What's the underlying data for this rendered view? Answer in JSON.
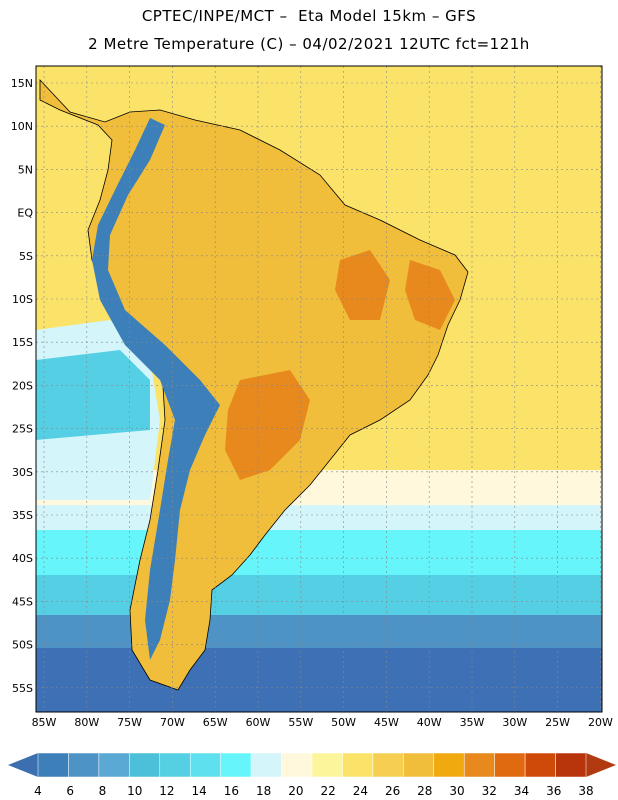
{
  "title_line1": "CPTEC/INPE/MCT –  Eta Model 15km – GFS",
  "title_line2": "2 Metre Temperature (C) – 04/02/2021 12UTC fct=121h",
  "lat_labels": [
    "15N",
    "10N",
    "5N",
    "EQ",
    "5S",
    "10S",
    "15S",
    "20S",
    "25S",
    "30S",
    "35S",
    "40S",
    "45S",
    "50S",
    "55S"
  ],
  "lon_labels": [
    "85W",
    "80W",
    "75W",
    "70W",
    "65W",
    "60W",
    "55W",
    "50W",
    "45W",
    "40W",
    "35W",
    "30W",
    "25W",
    "20W"
  ],
  "colorbar": {
    "labels": [
      "4",
      "6",
      "8",
      "10",
      "12",
      "14",
      "16",
      "18",
      "20",
      "22",
      "24",
      "26",
      "28",
      "30",
      "32",
      "34",
      "36",
      "38"
    ],
    "colors": [
      "#3d7fb8",
      "#4e93c6",
      "#5aa8d4",
      "#4cbfd9",
      "#55cfe3",
      "#5fe0ee",
      "#66f5fb",
      "#d4f6fb",
      "#fff8dc",
      "#fdf59c",
      "#fbe36a",
      "#f6cf52",
      "#f0be3a",
      "#f0aa10",
      "#e8891e",
      "#e06a10",
      "#cf4a08",
      "#b8340a"
    ],
    "low_color": "#3c6fb0",
    "high_color": "#b23a10"
  },
  "map_colors": {
    "ocean_tropical": "#fbe36a",
    "ocean_subtropical": "#fff8dc",
    "ocean_temperate_warm": "#d4f6fb",
    "ocean_temperate": "#66f5fb",
    "ocean_cool": "#55cfe3",
    "ocean_cold": "#4e93c6",
    "ocean_polar": "#3d70b4",
    "land_warm": "#f0be3a",
    "land_hot": "#e8891e",
    "andes": "#3d7fb8"
  }
}
